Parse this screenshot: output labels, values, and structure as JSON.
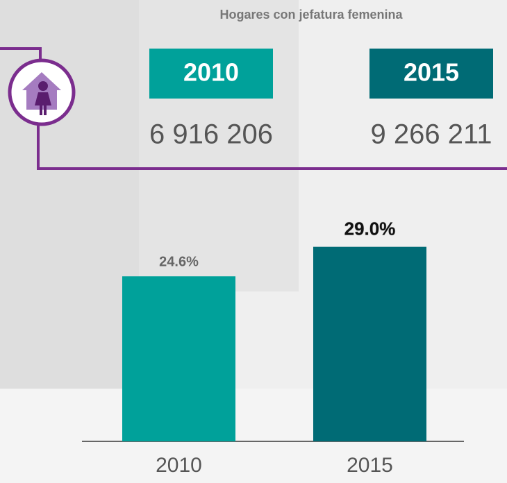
{
  "header": {
    "title": "Hogares con jefatura femenina",
    "years": [
      "2010",
      "2015"
    ],
    "totals": [
      "6 916 206",
      "9 266 211"
    ]
  },
  "chart_data": {
    "type": "bar",
    "categories": [
      "2010",
      "2015"
    ],
    "values": [
      24.6,
      29.0
    ],
    "value_labels": [
      "24.6%",
      "29.0%"
    ],
    "colors": [
      "#00a19a",
      "#006b75"
    ],
    "ylim": [
      0,
      30
    ]
  }
}
